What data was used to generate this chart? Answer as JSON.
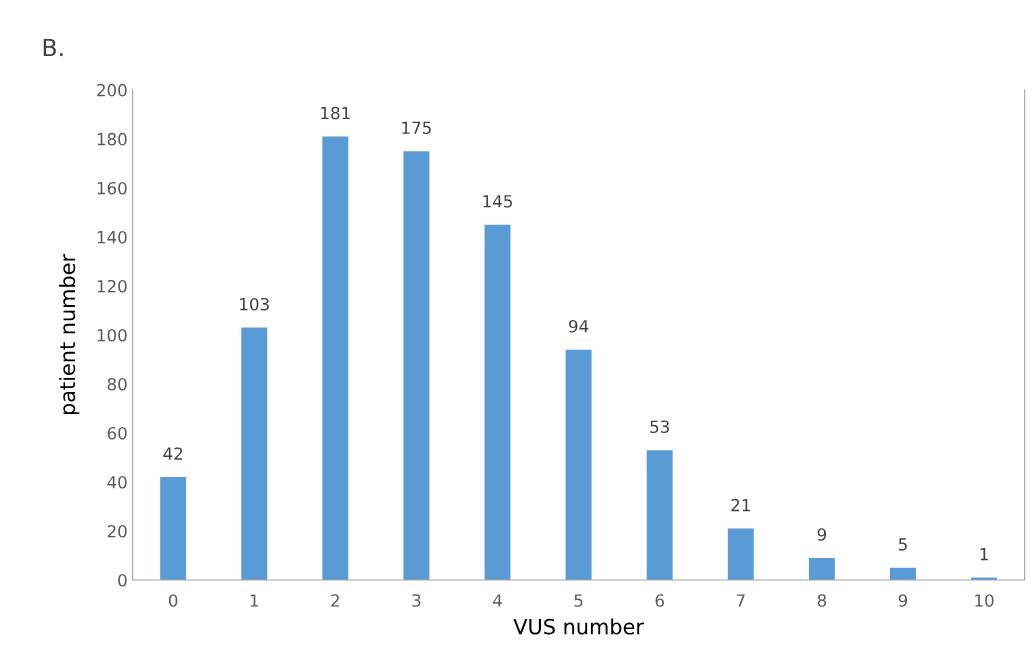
{
  "chart_data": {
    "type": "bar",
    "title": "B.",
    "xlabel": "VUS number",
    "ylabel": "patient number",
    "categories": [
      "0",
      "1",
      "2",
      "3",
      "4",
      "5",
      "6",
      "7",
      "8",
      "9",
      "10"
    ],
    "values": [
      42,
      103,
      181,
      175,
      145,
      94,
      53,
      21,
      9,
      5,
      1
    ],
    "color": "#5b9bd5",
    "ylim": [
      0,
      200
    ],
    "yticks": [
      0,
      20,
      40,
      60,
      80,
      100,
      120,
      140,
      160,
      180,
      200
    ],
    "data_labels": true,
    "grid": false,
    "legend": false
  }
}
